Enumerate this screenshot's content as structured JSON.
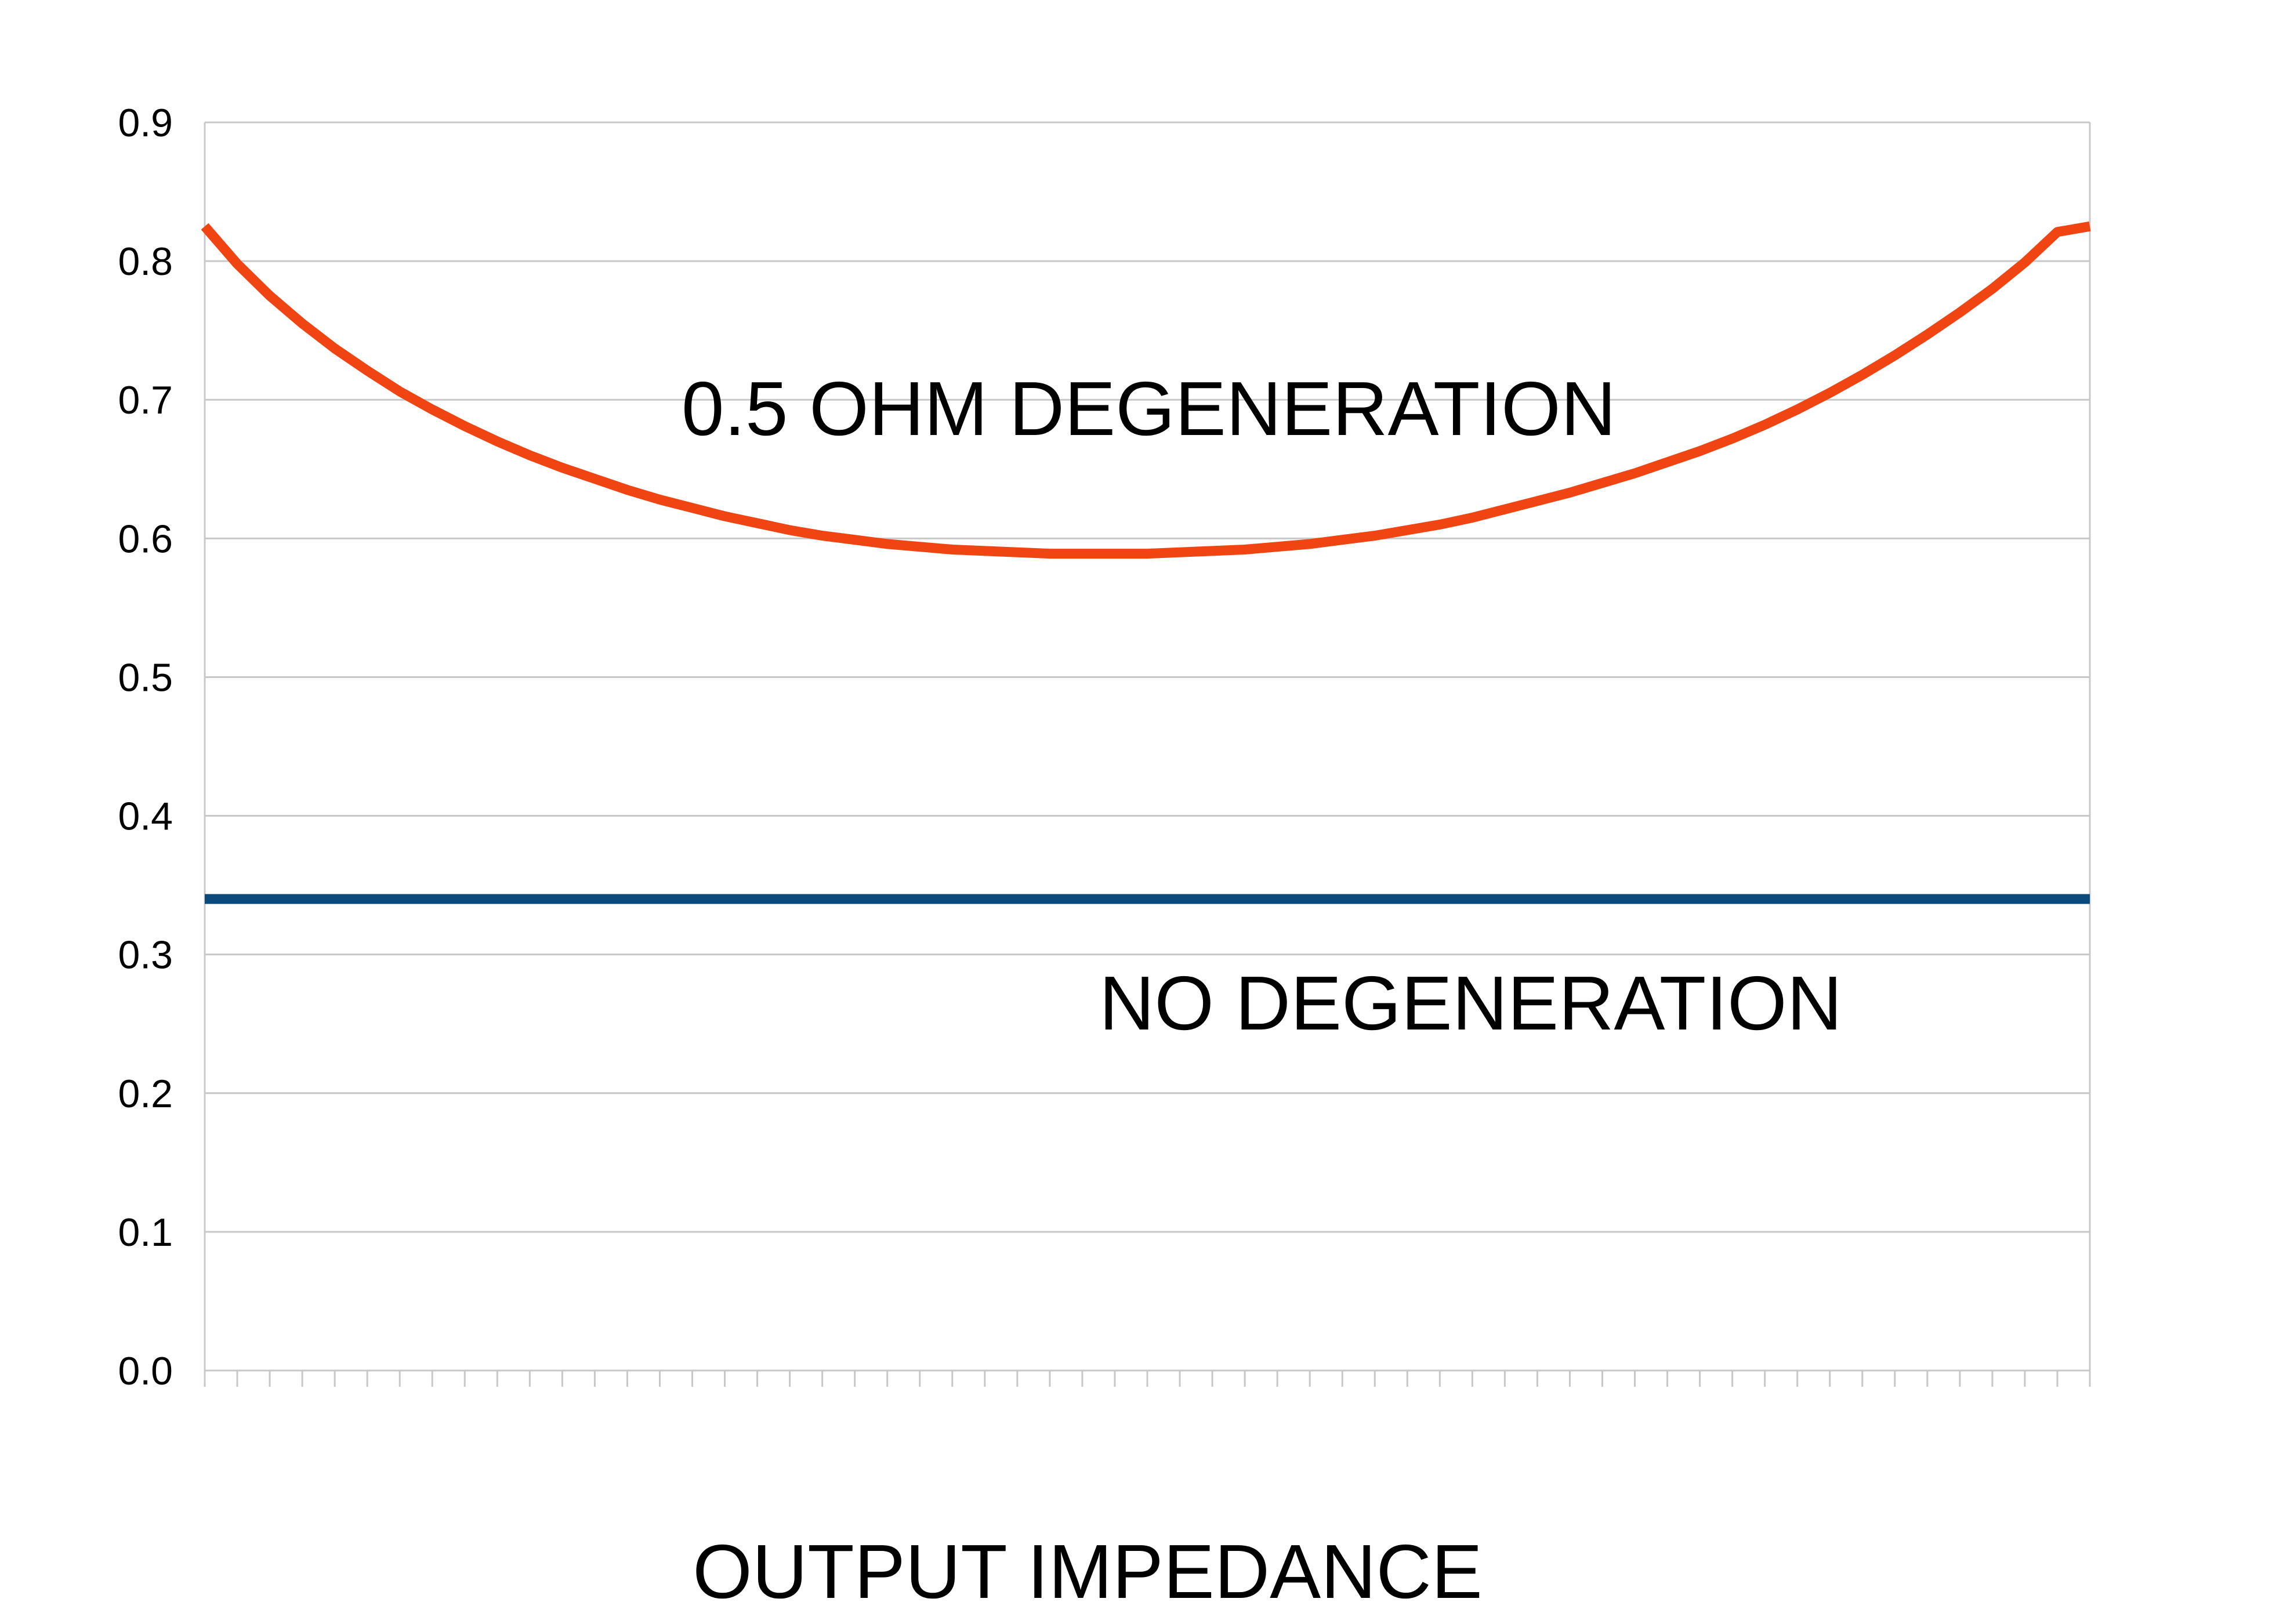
{
  "chart_data": {
    "type": "line",
    "xlabel": "OUTPUT IMPEDANCE",
    "ylabel": "",
    "ylim": [
      0,
      0.9
    ],
    "yticks": [
      "0.0",
      "0.1",
      "0.2",
      "0.3",
      "0.4",
      "0.5",
      "0.6",
      "0.7",
      "0.8",
      "0.9"
    ],
    "grid": "horizontal",
    "x_tick_count": 59,
    "series": [
      {
        "name": "0.5 OHM DEGENERATION",
        "color": "#f04412",
        "values": [
          0.825,
          0.798,
          0.775,
          0.755,
          0.737,
          0.721,
          0.706,
          0.693,
          0.681,
          0.67,
          0.66,
          0.651,
          0.643,
          0.635,
          0.628,
          0.622,
          0.616,
          0.611,
          0.606,
          0.602,
          0.599,
          0.596,
          0.594,
          0.592,
          0.591,
          0.59,
          0.589,
          0.589,
          0.589,
          0.589,
          0.59,
          0.591,
          0.592,
          0.594,
          0.596,
          0.599,
          0.602,
          0.606,
          0.61,
          0.615,
          0.621,
          0.627,
          0.633,
          0.64,
          0.647,
          0.655,
          0.663,
          0.672,
          0.682,
          0.693,
          0.705,
          0.718,
          0.732,
          0.747,
          0.763,
          0.78,
          0.799,
          0.821,
          0.825
        ]
      },
      {
        "name": "NO DEGENERATION",
        "color": "#0d4a7c",
        "values": [
          0.34,
          0.34
        ]
      }
    ]
  }
}
